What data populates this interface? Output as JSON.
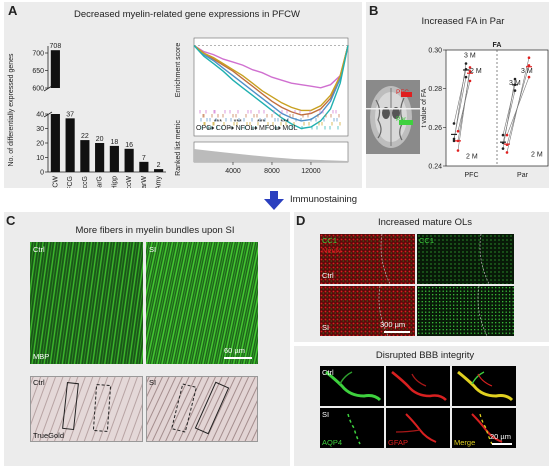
{
  "panels": {
    "a": {
      "letter": "A",
      "title": "Decreased myelin-related gene expressions in PFCW",
      "bar_ylabel": "No. of differentially expressed genes",
      "gsea_ylabel_top": "Enrichment score",
      "gsea_ylabel_bottom": "Ranked list metric",
      "stages": [
        "OPC",
        "COP",
        "NFOL",
        "MFOL",
        "MOL"
      ],
      "stage_marks": "***"
    },
    "b": {
      "letter": "B",
      "title": "Increased FA in Par",
      "fa_label": "FA",
      "ylabel": "t value of FA",
      "timepoints": [
        "3 M",
        "2 M"
      ],
      "region_labels": [
        "PFC",
        "Par"
      ]
    },
    "arrow": {
      "label": "Immunostaining"
    },
    "c": {
      "letter": "C",
      "title": "More fibers in myelin bundles upon SI",
      "ctrl": "Ctrl",
      "si": "SI",
      "stain_top": "MBP",
      "stain_bottom": "TrueGold",
      "scale": "60 µm"
    },
    "d": {
      "letter": "D",
      "title_top": "Increased mature OLs",
      "title_bottom": "Disrupted BBB integrity",
      "cc1": "CC1",
      "neun": "NeuN",
      "ctrl": "Ctrl",
      "si": "SI",
      "scale_top": "300 µm",
      "aqp4": "AQP4",
      "gfap": "GFAP",
      "merge": "Merge",
      "scale_bottom": "20 µm"
    }
  },
  "colors": {
    "panel_bg": "#ececec",
    "arrow": "#2a3fbf",
    "green": "#3ed13e",
    "red": "#e02020",
    "yellow": "#e0d020"
  },
  "chart_data": [
    {
      "type": "bar",
      "title": "Decreased myelin-related gene expressions in PFCW",
      "ylabel": "No. of differentially expressed genes",
      "categories": [
        "PFCW",
        "PFCG",
        "OccG",
        "ParG",
        "Hipp",
        "OccW",
        "ParW",
        "Amy"
      ],
      "values": [
        708,
        37,
        22,
        20,
        18,
        16,
        7,
        2
      ],
      "axis_break": true,
      "yticks_lower": [
        0,
        10,
        20,
        30,
        40
      ],
      "yticks_upper": [
        600,
        650,
        700
      ]
    },
    {
      "type": "line",
      "ylabel": "Enrichment score",
      "x_ticks": [
        4000,
        8000,
        12000
      ],
      "series": [
        {
          "name": "OPC",
          "color": "#d070d0",
          "x": [
            0,
            1000,
            2000,
            3000,
            4000,
            5000,
            6000,
            7000,
            8000,
            9000,
            10000,
            11000,
            12000,
            13000,
            14000,
            15000,
            15800
          ],
          "y": [
            0.0,
            -0.04,
            -0.06,
            -0.09,
            -0.11,
            -0.13,
            -0.16,
            -0.18,
            -0.21,
            -0.23,
            -0.25,
            -0.26,
            -0.27,
            -0.28,
            -0.26,
            -0.2,
            0.0
          ]
        },
        {
          "name": "COP",
          "color": "#c07040",
          "x": [
            0,
            1000,
            2000,
            3000,
            4000,
            5000,
            6000,
            7000,
            8000,
            9000,
            10000,
            11000,
            12000,
            13000,
            14000,
            15000,
            15800
          ],
          "y": [
            0.0,
            -0.05,
            -0.09,
            -0.13,
            -0.17,
            -0.22,
            -0.27,
            -0.32,
            -0.37,
            -0.41,
            -0.44,
            -0.46,
            -0.45,
            -0.42,
            -0.35,
            -0.22,
            0.0
          ]
        },
        {
          "name": "NFOL",
          "color": "#5090c8",
          "x": [
            0,
            1000,
            2000,
            3000,
            4000,
            5000,
            6000,
            7000,
            8000,
            9000,
            10000,
            11000,
            12000,
            13000,
            14000,
            15000,
            15800
          ],
          "y": [
            0.0,
            -0.06,
            -0.1,
            -0.15,
            -0.2,
            -0.25,
            -0.3,
            -0.35,
            -0.4,
            -0.45,
            -0.48,
            -0.5,
            -0.49,
            -0.45,
            -0.37,
            -0.22,
            0.0
          ]
        },
        {
          "name": "MFOL",
          "color": "#c8a020",
          "x": [
            0,
            1000,
            2000,
            3000,
            4000,
            5000,
            6000,
            7000,
            8000,
            9000,
            10000,
            11000,
            12000,
            13000,
            14000,
            15000,
            15800
          ],
          "y": [
            0.0,
            -0.05,
            -0.08,
            -0.12,
            -0.16,
            -0.2,
            -0.25,
            -0.3,
            -0.34,
            -0.38,
            -0.41,
            -0.43,
            -0.43,
            -0.4,
            -0.33,
            -0.2,
            0.0
          ]
        },
        {
          "name": "MOL",
          "color": "#20b0b0",
          "x": [
            0,
            1000,
            2000,
            3000,
            4000,
            5000,
            6000,
            7000,
            8000,
            9000,
            10000,
            11000,
            12000,
            13000,
            14000,
            15000,
            15800
          ],
          "y": [
            0.0,
            -0.07,
            -0.12,
            -0.17,
            -0.23,
            -0.28,
            -0.33,
            -0.38,
            -0.43,
            -0.48,
            -0.52,
            -0.55,
            -0.54,
            -0.5,
            -0.42,
            -0.25,
            0.0
          ]
        }
      ]
    },
    {
      "type": "scatter",
      "title": "Increased FA in Par",
      "ylabel": "t value of FA",
      "ylim": [
        0.24,
        0.3
      ],
      "yticks": [
        0.24,
        0.26,
        0.28,
        0.3
      ],
      "categories": [
        "PFC",
        "Par"
      ],
      "series": [
        {
          "name": "PFC 3 M",
          "color": "#222222",
          "pairs": [
            [
              0.253,
              0.293
            ],
            [
              0.262,
              0.29
            ],
            [
              0.254,
              0.286
            ]
          ]
        },
        {
          "name": "PFC 2 M",
          "color": "#e02020",
          "pairs": [
            [
              0.248,
              0.291
            ],
            [
              0.253,
              0.289
            ],
            [
              0.258,
              0.284
            ]
          ]
        },
        {
          "name": "Par 3 M",
          "color": "#222222",
          "pairs": [
            [
              0.249,
              0.285
            ],
            [
              0.256,
              0.282
            ],
            [
              0.252,
              0.279
            ]
          ]
        },
        {
          "name": "Par 2 M",
          "color": "#e02020",
          "pairs": [
            [
              0.247,
              0.296
            ],
            [
              0.251,
              0.292
            ],
            [
              0.256,
              0.286
            ]
          ]
        }
      ]
    }
  ]
}
